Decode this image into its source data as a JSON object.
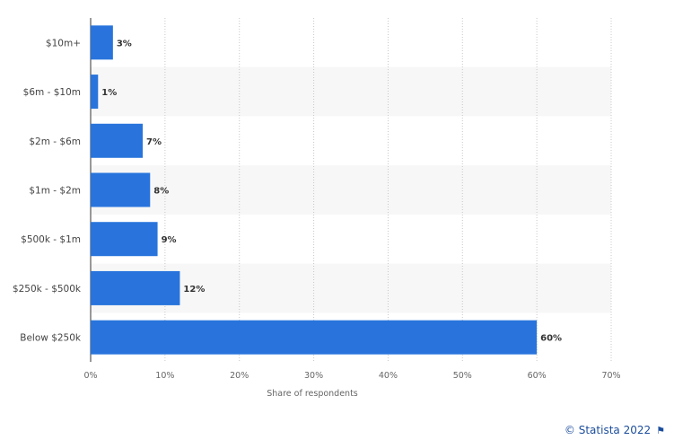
{
  "chart_data": {
    "type": "bar",
    "orientation": "horizontal",
    "categories": [
      "$10m+",
      "$6m - $10m",
      "$2m - $6m",
      "$1m - $2m",
      "$500k - $1m",
      "$250k - $500k",
      "Below $250k"
    ],
    "values": [
      3,
      1,
      7,
      8,
      9,
      12,
      60
    ],
    "data_labels": [
      "3%",
      "1%",
      "7%",
      "8%",
      "9%",
      "12%",
      "60%"
    ],
    "xlabel": "Share of respondents",
    "xlim": [
      0,
      70
    ],
    "xticks": [
      0,
      10,
      20,
      30,
      40,
      50,
      60,
      70
    ],
    "xtick_labels": [
      "0%",
      "10%",
      "20%",
      "30%",
      "40%",
      "50%",
      "60%",
      "70%"
    ],
    "grid": true,
    "bar_color": "#2874dc"
  },
  "credit": {
    "text": "© Statista 2022",
    "icon": "flag-icon"
  }
}
